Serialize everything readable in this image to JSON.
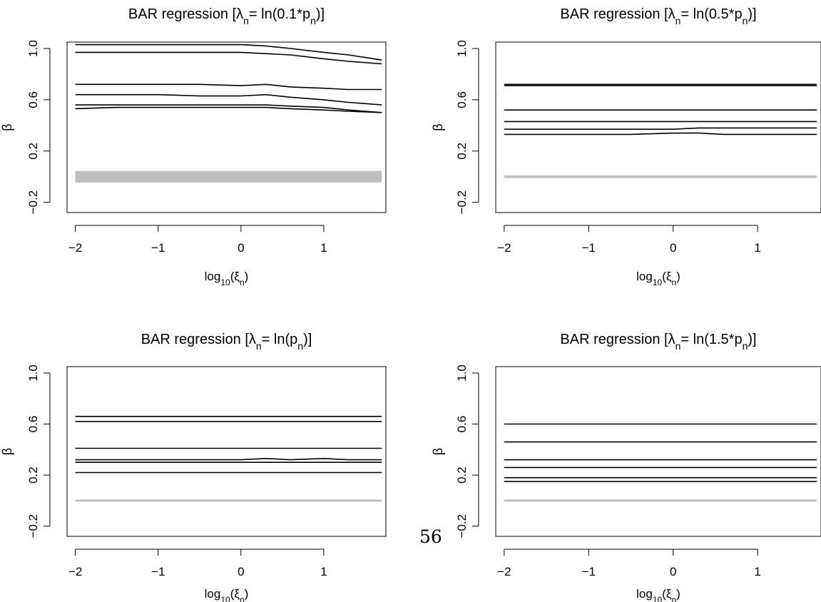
{
  "page_number": "56",
  "chart_data": [
    {
      "type": "line",
      "title": "BAR regression [λn= ln(0.1*pn)]",
      "title_parts": {
        "prefix": "BAR regression [λ",
        "sub1": "n",
        "mid": "= ln(0.1*p",
        "sub2": "n",
        "suffix": ")]"
      },
      "xlabel_parts": {
        "prefix": "log",
        "sub1": "10",
        "mid": "(ξ",
        "sub2": "n",
        "suffix": ")"
      },
      "ylabel": "β",
      "xlim": [
        -2.1,
        1.75
      ],
      "ylim": [
        -0.28,
        1.05
      ],
      "x_ticks": [
        -2,
        -1,
        0,
        1
      ],
      "x_tick_labels": [
        "−2",
        "−1",
        "0",
        "1"
      ],
      "y_ticks": [
        -0.2,
        0.2,
        0.6,
        1.0
      ],
      "y_tick_labels": [
        "−0.2",
        "0.2",
        "0.6",
        "1.0"
      ],
      "grid": false,
      "legend": "none",
      "x": [
        -2,
        -1.5,
        -1,
        -0.5,
        0,
        0.3,
        0.6,
        1.0,
        1.3,
        1.7
      ],
      "series": [
        {
          "values": [
            1.03,
            1.03,
            1.03,
            1.03,
            1.03,
            1.02,
            1.0,
            0.97,
            0.95,
            0.91
          ],
          "color": "#000000"
        },
        {
          "values": [
            0.97,
            0.97,
            0.97,
            0.97,
            0.97,
            0.96,
            0.95,
            0.92,
            0.9,
            0.88
          ],
          "color": "#000000"
        },
        {
          "values": [
            0.72,
            0.72,
            0.72,
            0.72,
            0.71,
            0.72,
            0.7,
            0.69,
            0.68,
            0.68
          ],
          "color": "#000000"
        },
        {
          "values": [
            0.64,
            0.64,
            0.64,
            0.63,
            0.63,
            0.64,
            0.62,
            0.6,
            0.58,
            0.56
          ],
          "color": "#000000"
        },
        {
          "values": [
            0.56,
            0.56,
            0.56,
            0.56,
            0.56,
            0.56,
            0.55,
            0.54,
            0.52,
            0.5
          ],
          "color": "#000000"
        },
        {
          "values": [
            0.53,
            0.54,
            0.54,
            0.54,
            0.54,
            0.54,
            0.53,
            0.52,
            0.51,
            0.5
          ],
          "color": "#000000"
        },
        {
          "values": [
            0.0,
            0.0,
            0.0,
            0.0,
            0.0,
            0.0,
            0.0,
            0.0,
            0.0,
            0.0
          ],
          "color": "#bebebe",
          "band": 0.045
        }
      ]
    },
    {
      "type": "line",
      "title": "BAR regression [λn= ln(0.5*pn)]",
      "title_parts": {
        "prefix": "BAR regression [λ",
        "sub1": "n",
        "mid": "= ln(0.5*p",
        "sub2": "n",
        "suffix": ")]"
      },
      "xlabel_parts": {
        "prefix": "log",
        "sub1": "10",
        "mid": "(ξ",
        "sub2": "n",
        "suffix": ")"
      },
      "ylabel": "β",
      "xlim": [
        -2.1,
        1.75
      ],
      "ylim": [
        -0.28,
        1.05
      ],
      "x_ticks": [
        -2,
        -1,
        0,
        1
      ],
      "x_tick_labels": [
        "−2",
        "−1",
        "0",
        "1"
      ],
      "y_ticks": [
        -0.2,
        0.2,
        0.6,
        1.0
      ],
      "y_tick_labels": [
        "−0.2",
        "0.2",
        "0.6",
        "1.0"
      ],
      "grid": false,
      "legend": "none",
      "x": [
        -2,
        -1.5,
        -1,
        -0.5,
        0,
        0.3,
        0.6,
        1.0,
        1.3,
        1.7
      ],
      "series": [
        {
          "values": [
            0.72,
            0.72,
            0.72,
            0.72,
            0.72,
            0.72,
            0.72,
            0.72,
            0.72,
            0.72
          ],
          "color": "#000000"
        },
        {
          "values": [
            0.71,
            0.71,
            0.71,
            0.71,
            0.71,
            0.71,
            0.71,
            0.71,
            0.71,
            0.71
          ],
          "color": "#000000"
        },
        {
          "values": [
            0.52,
            0.52,
            0.52,
            0.52,
            0.52,
            0.52,
            0.52,
            0.52,
            0.52,
            0.52
          ],
          "color": "#000000"
        },
        {
          "values": [
            0.43,
            0.43,
            0.43,
            0.43,
            0.43,
            0.43,
            0.43,
            0.43,
            0.43,
            0.43
          ],
          "color": "#000000"
        },
        {
          "values": [
            0.37,
            0.37,
            0.37,
            0.37,
            0.37,
            0.38,
            0.38,
            0.38,
            0.38,
            0.38
          ],
          "color": "#000000"
        },
        {
          "values": [
            0.33,
            0.33,
            0.33,
            0.33,
            0.34,
            0.34,
            0.33,
            0.33,
            0.33,
            0.33
          ],
          "color": "#000000"
        },
        {
          "values": [
            0.0,
            0.0,
            0.0,
            0.0,
            0.0,
            0.0,
            0.0,
            0.0,
            0.0,
            0.0
          ],
          "color": "#bebebe",
          "band": 0.01
        }
      ]
    },
    {
      "type": "line",
      "title": "BAR regression [λn= ln(pn)]",
      "title_parts": {
        "prefix": "BAR regression [λ",
        "sub1": "n",
        "mid": "= ln(p",
        "sub2": "n",
        "suffix": ")]"
      },
      "xlabel_parts": {
        "prefix": "log",
        "sub1": "10",
        "mid": "(ξ",
        "sub2": "n",
        "suffix": ")"
      },
      "ylabel": "β",
      "xlim": [
        -2.1,
        1.75
      ],
      "ylim": [
        -0.28,
        1.05
      ],
      "x_ticks": [
        -2,
        -1,
        0,
        1
      ],
      "x_tick_labels": [
        "−2",
        "−1",
        "0",
        "1"
      ],
      "y_ticks": [
        -0.2,
        0.2,
        0.6,
        1.0
      ],
      "y_tick_labels": [
        "−0.2",
        "0.2",
        "0.6",
        "1.0"
      ],
      "grid": false,
      "legend": "none",
      "x": [
        -2,
        -1.5,
        -1,
        -0.5,
        0,
        0.3,
        0.6,
        1.0,
        1.3,
        1.7
      ],
      "series": [
        {
          "values": [
            0.66,
            0.66,
            0.66,
            0.66,
            0.66,
            0.66,
            0.66,
            0.66,
            0.66,
            0.66
          ],
          "color": "#000000"
        },
        {
          "values": [
            0.62,
            0.62,
            0.62,
            0.62,
            0.62,
            0.62,
            0.62,
            0.62,
            0.62,
            0.62
          ],
          "color": "#000000"
        },
        {
          "values": [
            0.41,
            0.41,
            0.41,
            0.41,
            0.41,
            0.41,
            0.41,
            0.41,
            0.41,
            0.41
          ],
          "color": "#000000"
        },
        {
          "values": [
            0.32,
            0.32,
            0.32,
            0.32,
            0.32,
            0.33,
            0.32,
            0.33,
            0.32,
            0.32
          ],
          "color": "#000000"
        },
        {
          "values": [
            0.3,
            0.3,
            0.3,
            0.3,
            0.3,
            0.3,
            0.3,
            0.3,
            0.3,
            0.3
          ],
          "color": "#000000"
        },
        {
          "values": [
            0.22,
            0.22,
            0.22,
            0.22,
            0.22,
            0.22,
            0.22,
            0.22,
            0.22,
            0.22
          ],
          "color": "#000000"
        },
        {
          "values": [
            0.0,
            0.0,
            0.0,
            0.0,
            0.0,
            0.0,
            0.0,
            0.0,
            0.0,
            0.0
          ],
          "color": "#bebebe",
          "band": 0.005
        }
      ]
    },
    {
      "type": "line",
      "title": "BAR regression [λn= ln(1.5*pn)]",
      "title_parts": {
        "prefix": "BAR regression [λ",
        "sub1": "n",
        "mid": "= ln(1.5*p",
        "sub2": "n",
        "suffix": ")]"
      },
      "xlabel_parts": {
        "prefix": "log",
        "sub1": "10",
        "mid": "(ξ",
        "sub2": "n",
        "suffix": ")"
      },
      "ylabel": "β",
      "xlim": [
        -2.1,
        1.75
      ],
      "ylim": [
        -0.28,
        1.05
      ],
      "x_ticks": [
        -2,
        -1,
        0,
        1
      ],
      "x_tick_labels": [
        "−2",
        "−1",
        "0",
        "1"
      ],
      "y_ticks": [
        -0.2,
        0.2,
        0.6,
        1.0
      ],
      "y_tick_labels": [
        "−0.2",
        "0.2",
        "0.6",
        "1.0"
      ],
      "grid": false,
      "legend": "none",
      "x": [
        -2,
        -1.5,
        -1,
        -0.5,
        0,
        0.3,
        0.6,
        1.0,
        1.3,
        1.7
      ],
      "series": [
        {
          "values": [
            0.6,
            0.6,
            0.6,
            0.6,
            0.6,
            0.6,
            0.6,
            0.6,
            0.6,
            0.6
          ],
          "color": "#000000"
        },
        {
          "values": [
            0.46,
            0.46,
            0.46,
            0.46,
            0.46,
            0.46,
            0.46,
            0.46,
            0.46,
            0.46
          ],
          "color": "#000000"
        },
        {
          "values": [
            0.32,
            0.32,
            0.32,
            0.32,
            0.32,
            0.32,
            0.32,
            0.32,
            0.32,
            0.32
          ],
          "color": "#000000"
        },
        {
          "values": [
            0.26,
            0.26,
            0.26,
            0.26,
            0.26,
            0.26,
            0.26,
            0.26,
            0.26,
            0.26
          ],
          "color": "#000000"
        },
        {
          "values": [
            0.18,
            0.18,
            0.18,
            0.18,
            0.18,
            0.18,
            0.18,
            0.18,
            0.18,
            0.18
          ],
          "color": "#000000"
        },
        {
          "values": [
            0.15,
            0.15,
            0.15,
            0.15,
            0.15,
            0.15,
            0.15,
            0.15,
            0.15,
            0.15
          ],
          "color": "#000000"
        },
        {
          "values": [
            0.0,
            0.0,
            0.0,
            0.0,
            0.0,
            0.0,
            0.0,
            0.0,
            0.0,
            0.0
          ],
          "color": "#bebebe",
          "band": 0.005
        }
      ]
    }
  ]
}
